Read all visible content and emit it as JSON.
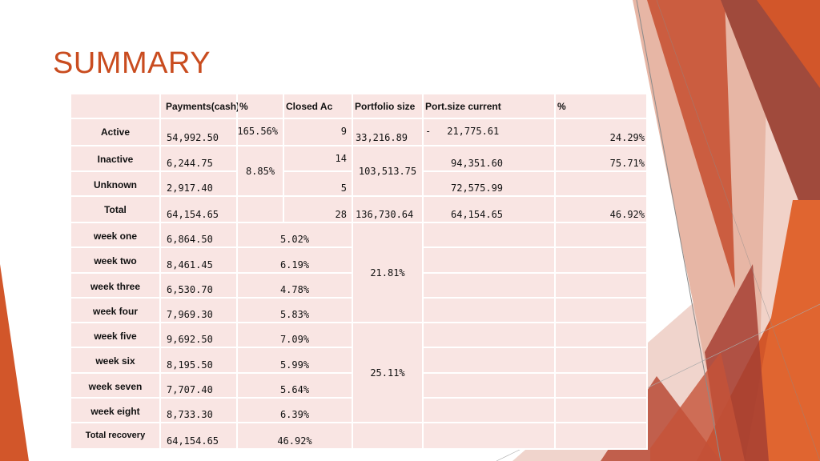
{
  "title": "SUMMARY",
  "headers": {
    "payments": "Payments(cash)",
    "pct": "%",
    "closed": "Closed Ac",
    "portfolio": "Portfolio size",
    "port_current": "Port.size current",
    "pct2": "%"
  },
  "status_rows": {
    "active": {
      "label": "Active",
      "payment": "54,992.50",
      "pct": "165.56%",
      "closed": "9",
      "portfolio": "33,216.89",
      "dash": "-",
      "current": "21,775.61",
      "pct2": "24.29%"
    },
    "inactive": {
      "label": "Inactive",
      "payment": "6,244.75",
      "closed": "14",
      "current": "94,351.60",
      "pct2": "75.71%"
    },
    "unknown": {
      "label": "Unknown",
      "payment": "2,917.40",
      "closed": "5",
      "current": "72,575.99"
    },
    "group_pct": "8.85%",
    "group_portfolio": "103,513.75",
    "total": {
      "label": "Total",
      "payment": "64,154.65",
      "closed": "28",
      "portfolio": "136,730.64",
      "current": "64,154.65",
      "pct2": "46.92%"
    }
  },
  "weeks": [
    {
      "label": "week one",
      "payment": "6,864.50",
      "pct": "5.02%"
    },
    {
      "label": "week two",
      "payment": "8,461.45",
      "pct": "6.19%"
    },
    {
      "label": "week three",
      "payment": "6,530.70",
      "pct": "4.78%"
    },
    {
      "label": "week four",
      "payment": "7,969.30",
      "pct": "5.83%"
    },
    {
      "label": "week five",
      "payment": "9,692.50",
      "pct": "7.09%"
    },
    {
      "label": "week six",
      "payment": "8,195.50",
      "pct": "5.99%"
    },
    {
      "label": "week seven",
      "payment": "7,707.40",
      "pct": "5.64%"
    },
    {
      "label": "week eight",
      "payment": "8,733.30",
      "pct": "6.39%"
    }
  ],
  "group_pct_weeks_1_4": "21.81%",
  "group_pct_weeks_5_8": "25.11%",
  "total_recovery": {
    "label": "Total recovery",
    "payment": "64,154.65",
    "pct": "46.92%"
  },
  "colors": {
    "accent": "#c94c1f",
    "cell": "#f9e5e3"
  }
}
